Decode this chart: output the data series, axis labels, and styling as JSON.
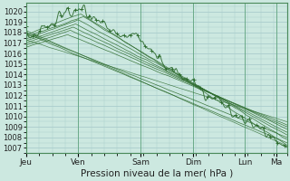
{
  "bg_color": "#cce8e0",
  "grid_color": "#aacccc",
  "line_color": "#2d6b2d",
  "ylim": [
    1006.5,
    1020.8
  ],
  "yticks": [
    1007,
    1008,
    1009,
    1010,
    1011,
    1012,
    1013,
    1014,
    1015,
    1016,
    1017,
    1018,
    1019,
    1020
  ],
  "xlabel": "Pression niveau de la mer( hPa )",
  "day_labels": [
    "Jeu",
    "Ven",
    "Sam",
    "Dim",
    "Lun",
    "Ma"
  ],
  "day_positions": [
    0,
    0.2,
    0.44,
    0.64,
    0.84,
    0.96
  ],
  "xlabel_fontsize": 7.5,
  "tick_fontsize": 6.0
}
